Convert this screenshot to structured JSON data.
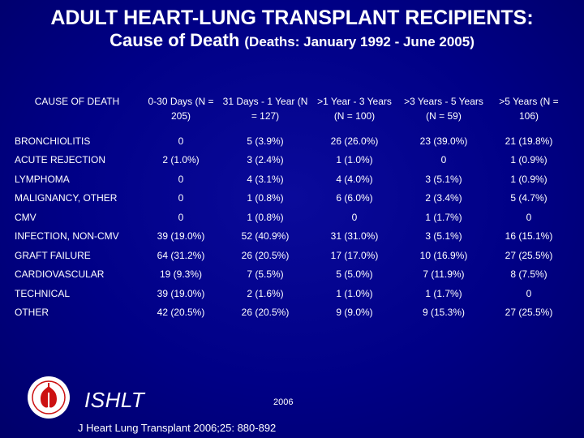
{
  "title": {
    "line1": "ADULT HEART-LUNG TRANSPLANT RECIPIENTS:",
    "line2_main": "Cause of Death ",
    "line2_sub": "(Deaths: January 1992 - June 2005)"
  },
  "table": {
    "headers": [
      "CAUSE OF DEATH",
      "0-30 Days (N = 205)",
      "31 Days - 1 Year (N = 127)",
      ">1 Year - 3 Years (N = 100)",
      ">3 Years - 5 Years (N = 59)",
      ">5 Years (N = 106)"
    ],
    "rows": [
      [
        "BRONCHIOLITIS",
        "0",
        "5 (3.9%)",
        "26 (26.0%)",
        "23 (39.0%)",
        "21 (19.8%)"
      ],
      [
        "ACUTE REJECTION",
        "2 (1.0%)",
        "3 (2.4%)",
        "1 (1.0%)",
        "0",
        "1 (0.9%)"
      ],
      [
        "LYMPHOMA",
        "0",
        "4 (3.1%)",
        "4 (4.0%)",
        "3 (5.1%)",
        "1 (0.9%)"
      ],
      [
        "MALIGNANCY, OTHER",
        "0",
        "1 (0.8%)",
        "6 (6.0%)",
        "2 (3.4%)",
        "5 (4.7%)"
      ],
      [
        "CMV",
        "0",
        "1 (0.8%)",
        "0",
        "1 (1.7%)",
        "0"
      ],
      [
        "INFECTION, NON-CMV",
        "39 (19.0%)",
        "52 (40.9%)",
        "31 (31.0%)",
        "3 (5.1%)",
        "16 (15.1%)"
      ],
      [
        "GRAFT FAILURE",
        "64 (31.2%)",
        "26 (20.5%)",
        "17 (17.0%)",
        "10 (16.9%)",
        "27 (25.5%)"
      ],
      [
        "CARDIOVASCULAR",
        "19 (9.3%)",
        "7 (5.5%)",
        "5 (5.0%)",
        "7 (11.9%)",
        "8 (7.5%)"
      ],
      [
        "TECHNICAL",
        "39 (19.0%)",
        "2 (1.6%)",
        "1 (1.0%)",
        "1 (1.7%)",
        "0"
      ],
      [
        "OTHER",
        "42 (20.5%)",
        "26 (20.5%)",
        "9 (9.0%)",
        "9 (15.3%)",
        "27 (25.5%)"
      ]
    ]
  },
  "footer": {
    "logo_text": "ISHLT",
    "year": "2006",
    "citation": "J Heart Lung Transplant 2006;25: 880-892"
  },
  "colors": {
    "background": "#000086",
    "text": "#ffffff",
    "logo_red": "#cc1111"
  }
}
